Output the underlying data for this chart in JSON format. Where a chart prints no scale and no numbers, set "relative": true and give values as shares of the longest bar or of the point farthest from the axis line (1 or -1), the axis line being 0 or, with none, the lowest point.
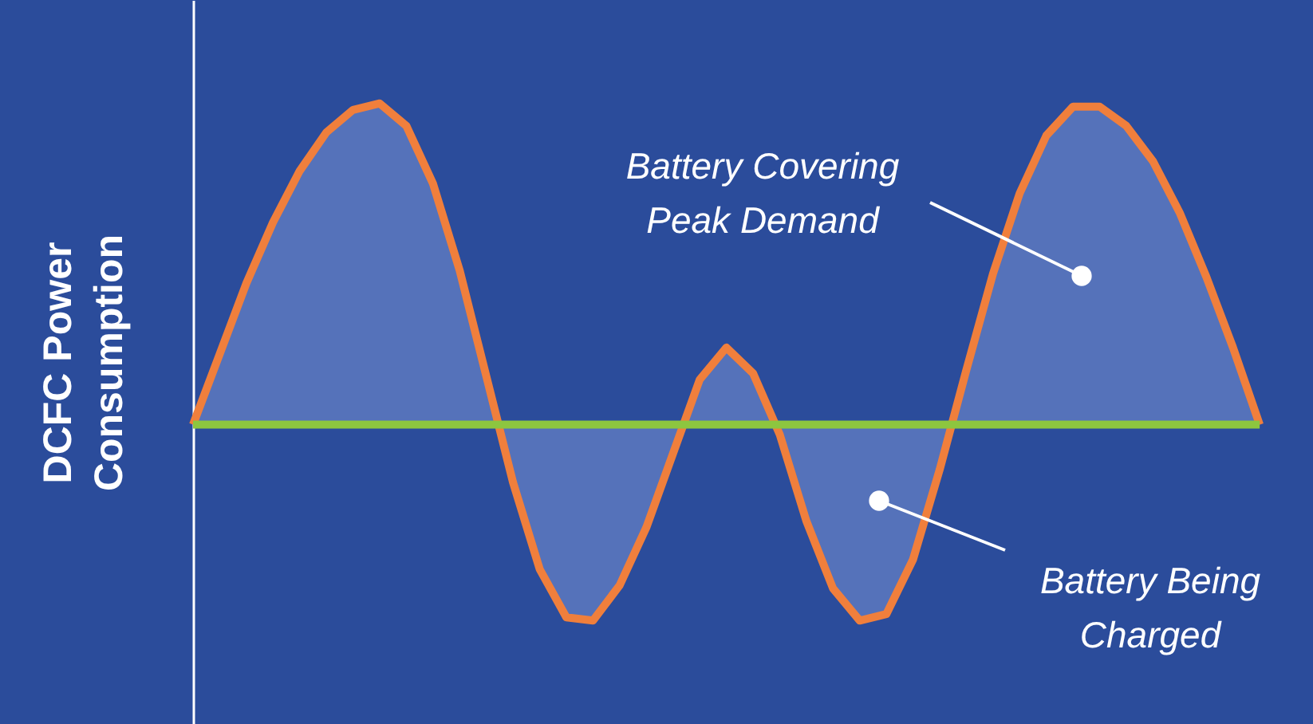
{
  "chart_data": {
    "type": "area",
    "relative": true,
    "ylabel": "DCFC Power Consumption",
    "categories": [
      null,
      null,
      null,
      null,
      null,
      null,
      null,
      null,
      null,
      null,
      null,
      null,
      null,
      null,
      null,
      null,
      null,
      null,
      null,
      null,
      null,
      null,
      null,
      null,
      null,
      null,
      null,
      null,
      null,
      null,
      null,
      null,
      null,
      null,
      null,
      null,
      null,
      null,
      null,
      null,
      null
    ],
    "series": [
      {
        "color": "#5572ba",
        "values": [
          0,
          0.22,
          0.44,
          0.63,
          0.79,
          0.91,
          0.98,
          1,
          0.93,
          0.75,
          0.48,
          0.15,
          -0.18,
          -0.45,
          -0.6,
          -0.61,
          -0.5,
          -0.32,
          -0.09,
          0.14,
          0.24,
          0.16,
          -0.03,
          -0.3,
          -0.51,
          -0.61,
          -0.59,
          -0.42,
          -0.14,
          0.17,
          0.47,
          0.72,
          0.9,
          0.99,
          0.99,
          0.93,
          0.82,
          0.66,
          0.46,
          0.24,
          0
        ]
      }
    ],
    "ref_lines": [
      {
        "axis": "y",
        "value": 0,
        "color": "#8dc63f"
      }
    ],
    "annotations": [
      "Battery Covering Peak Demand",
      "Battery Being Charged"
    ],
    "grid": false
  }
}
